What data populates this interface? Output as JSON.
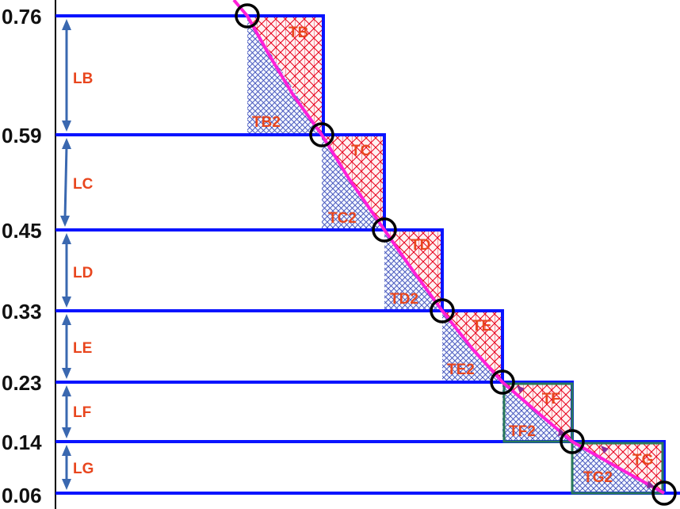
{
  "y_levels": [
    "0.76",
    "0.59",
    "0.45",
    "0.33",
    "0.23",
    "0.14",
    "0.06"
  ],
  "interval_labels": [
    "LB",
    "LC",
    "LD",
    "LE",
    "LF",
    "LG"
  ],
  "triangle_labels_upper": [
    "TB",
    "TC",
    "TD",
    "TE",
    "TF",
    "TG"
  ],
  "triangle_labels_lower": [
    "TB2",
    "TC2",
    "TD2",
    "TE2",
    "TF2",
    "TG2"
  ],
  "colors": {
    "level_line": "#0a14ff",
    "axis": "#000000",
    "arrow": "#3a68b0",
    "label": "#e8461e",
    "curve": "#ff1fd8",
    "circle": "#000000",
    "upper_hatch": "#e8001c",
    "lower_hatch": "#2a3ca8",
    "green_box": "#2a7a5a",
    "tick_label": "#111111"
  }
}
